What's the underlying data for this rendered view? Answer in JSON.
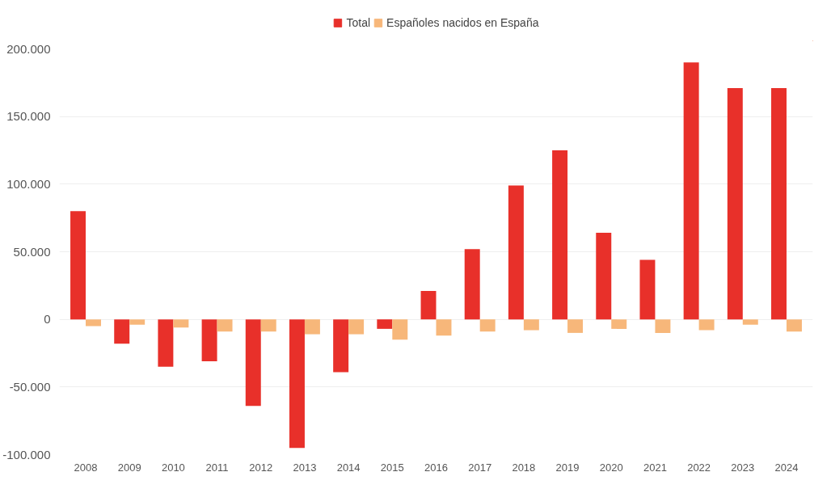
{
  "chart_data": {
    "type": "bar",
    "categories": [
      "2008",
      "2009",
      "2010",
      "2011",
      "2012",
      "2013",
      "2014",
      "2015",
      "2016",
      "2017",
      "2018",
      "2019",
      "2020",
      "2021",
      "2022",
      "2023",
      "2024"
    ],
    "series": [
      {
        "name": "Total",
        "color": "#e8302a",
        "values": [
          80000,
          -18000,
          -35000,
          -31000,
          -64000,
          -95000,
          -39000,
          -7000,
          21000,
          52000,
          99000,
          125000,
          64000,
          44000,
          190000,
          171000,
          171000
        ]
      },
      {
        "name": "Españoles nacidos en España",
        "color": "#f7b77a",
        "values": [
          -5000,
          -4000,
          -6000,
          -9000,
          -9000,
          -11000,
          -11000,
          -15000,
          -12000,
          -9000,
          -8000,
          -10000,
          -7000,
          -10000,
          -8000,
          -4000,
          -9000
        ]
      }
    ],
    "ylim": [
      -100000,
      200000
    ],
    "yticks": [
      {
        "value": -100000,
        "label": "-100.000"
      },
      {
        "value": -50000,
        "label": "-50.000"
      },
      0,
      {
        "value": 50000,
        "label": "50.000"
      },
      {
        "value": 100000,
        "label": "100.000"
      },
      {
        "value": 150000,
        "label": "150.000"
      },
      {
        "value": 200000,
        "label": "200.000"
      }
    ],
    "grid": "y",
    "legend": "top"
  }
}
